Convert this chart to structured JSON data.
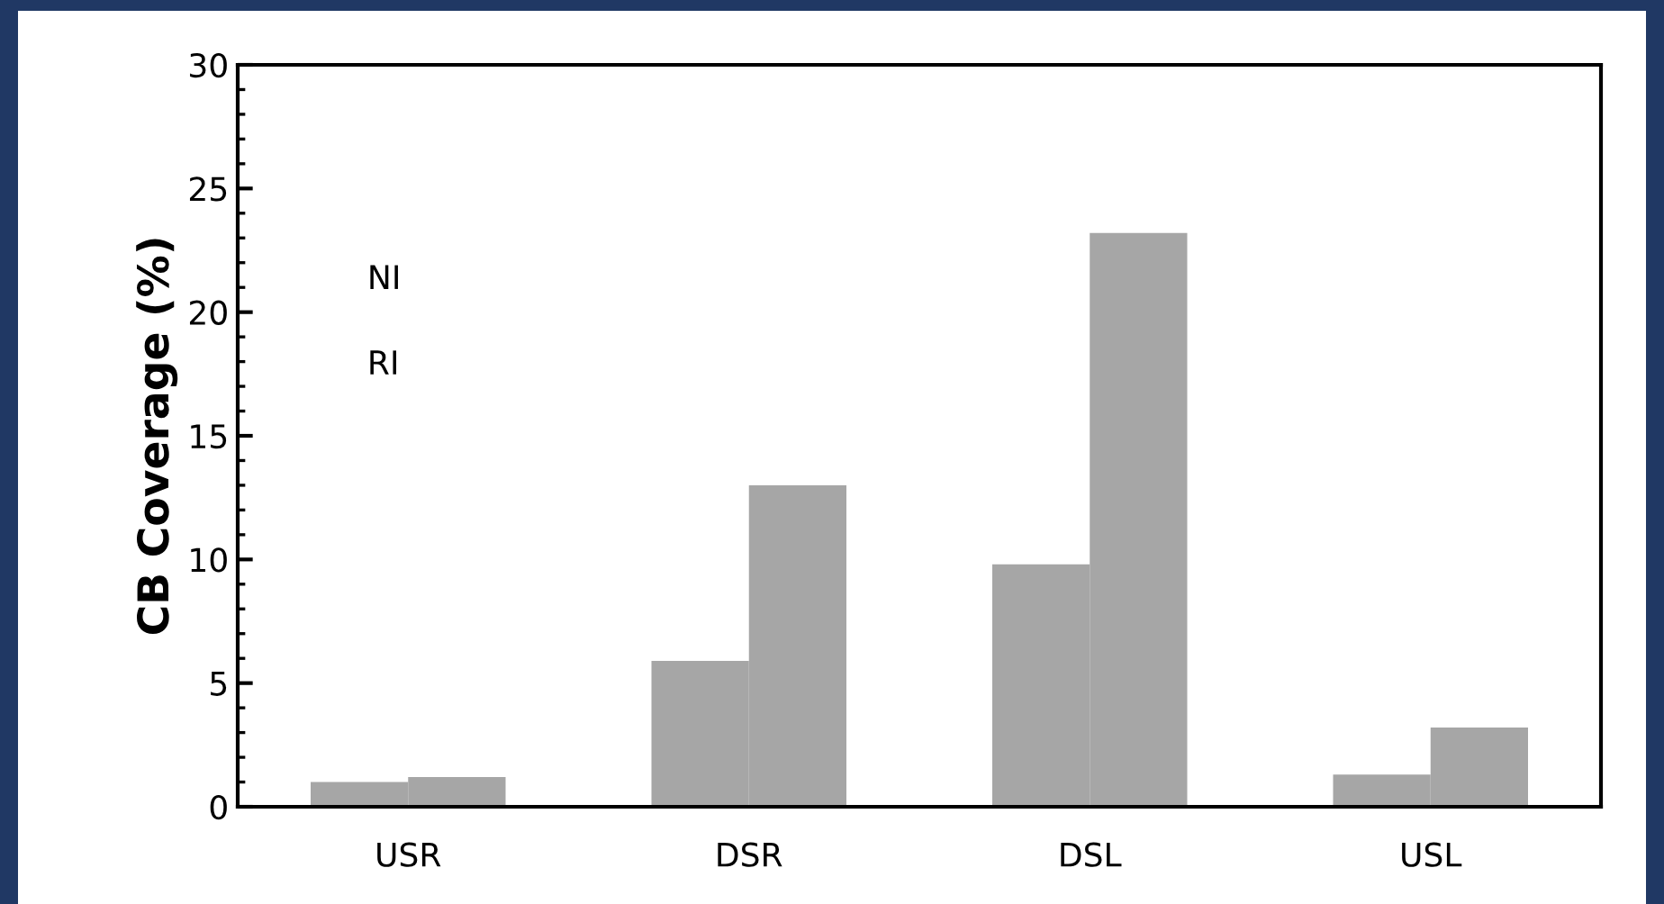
{
  "chart_data": {
    "type": "bar",
    "ylabel": "CB Coverage (%)",
    "categories": [
      "USR",
      "DSR",
      "DSL",
      "USL"
    ],
    "series": [
      {
        "color": "#a6a6a6",
        "values": [
          1.0,
          5.9,
          9.8,
          1.3
        ]
      },
      {
        "color": "#a6a6a6",
        "values": [
          1.2,
          13.0,
          23.2,
          3.2
        ]
      }
    ],
    "ylim": [
      0,
      30
    ],
    "yticks": [
      0,
      5,
      10,
      15,
      20,
      25,
      30
    ],
    "annotations": [
      "NI",
      "RI"
    ],
    "grid": false,
    "legend": false
  }
}
